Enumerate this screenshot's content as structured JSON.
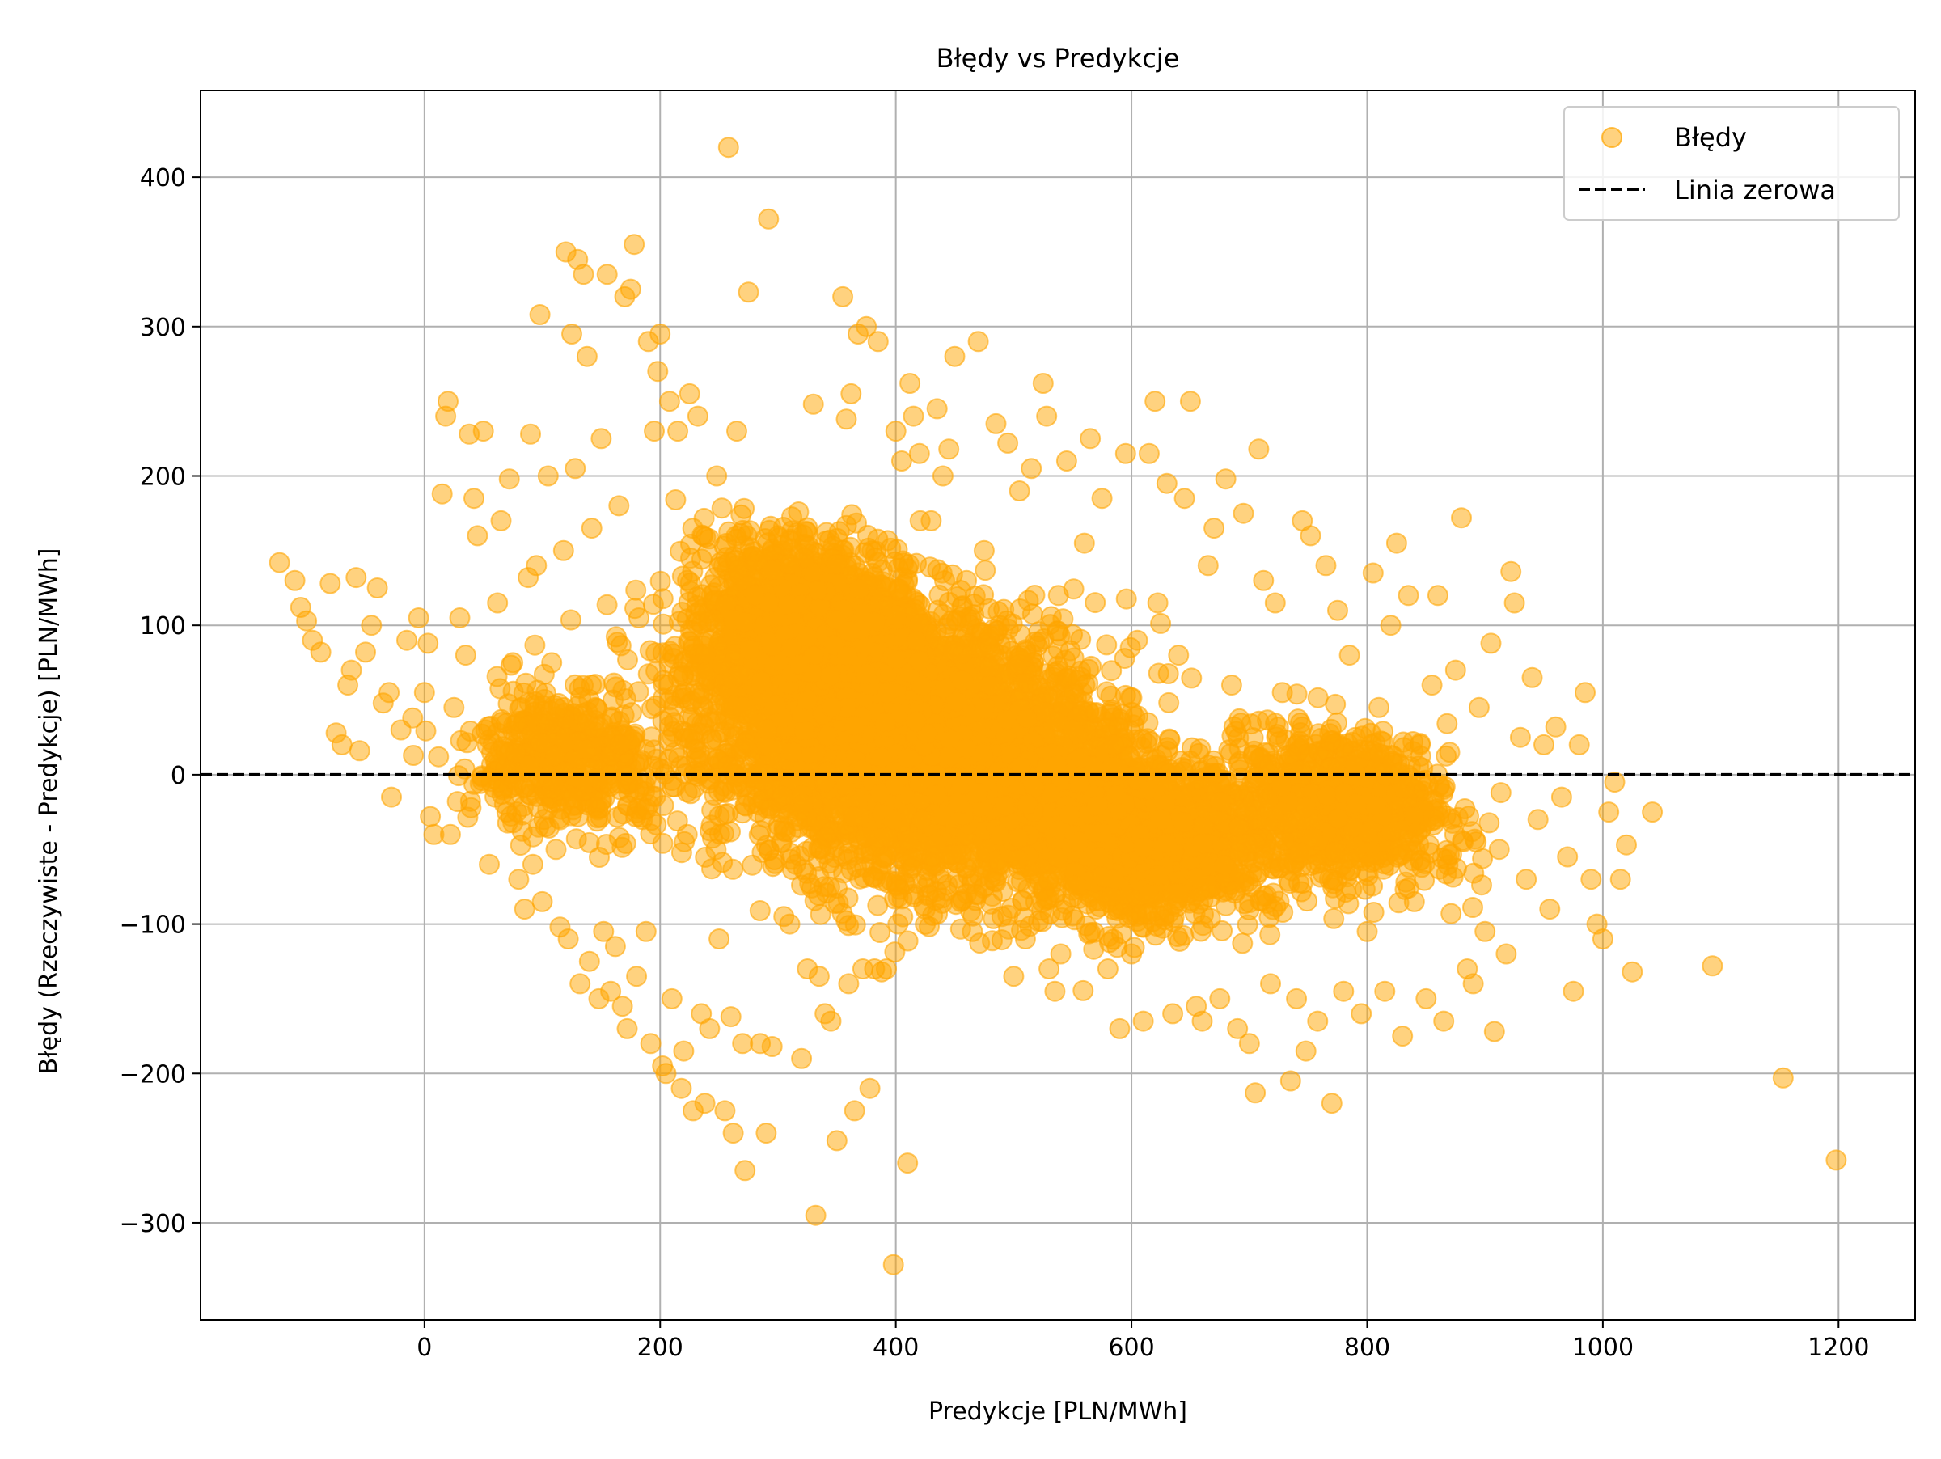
{
  "chart_data": {
    "type": "scatter",
    "title": "Błędy vs Predykcje",
    "xlabel": "Predykcje [PLN/MWh]",
    "ylabel": "Błędy (Rzeczywiste - Predykcje) [PLN/MWh]",
    "xlim": [
      -190,
      1265
    ],
    "ylim": [
      -365,
      458
    ],
    "xticks": [
      0,
      200,
      400,
      600,
      800,
      1000,
      1200
    ],
    "yticks": [
      -300,
      -200,
      -100,
      0,
      100,
      200,
      300,
      400
    ],
    "xtick_labels": [
      "0",
      "200",
      "400",
      "600",
      "800",
      "1000",
      "1200"
    ],
    "ytick_labels": [
      "−300",
      "−200",
      "−100",
      "0",
      "100",
      "200",
      "300",
      "400"
    ],
    "grid": true,
    "legend_position": "top-right",
    "colors": {
      "points": "#ffa500",
      "zero_line": "#000000",
      "grid": "#b0b0b0"
    },
    "series": [
      {
        "name": "Błędy",
        "kind": "points",
        "points": [
          [
            -123,
            142
          ],
          [
            -110,
            130
          ],
          [
            -105,
            112
          ],
          [
            -100,
            103
          ],
          [
            -95,
            90
          ],
          [
            -88,
            82
          ],
          [
            -80,
            128
          ],
          [
            -75,
            28
          ],
          [
            -70,
            20
          ],
          [
            -65,
            60
          ],
          [
            -62,
            70
          ],
          [
            -58,
            132
          ],
          [
            -55,
            16
          ],
          [
            -50,
            82
          ],
          [
            -45,
            100
          ],
          [
            -40,
            125
          ],
          [
            -35,
            48
          ],
          [
            -30,
            55
          ],
          [
            -28,
            -15
          ],
          [
            -20,
            30
          ],
          [
            -15,
            90
          ],
          [
            -10,
            38
          ],
          [
            -5,
            105
          ],
          [
            0,
            55
          ],
          [
            3,
            88
          ],
          [
            5,
            -28
          ],
          [
            8,
            -40
          ],
          [
            12,
            12
          ],
          [
            15,
            188
          ],
          [
            18,
            240
          ],
          [
            20,
            250
          ],
          [
            22,
            -40
          ],
          [
            25,
            45
          ],
          [
            28,
            -18
          ],
          [
            30,
            105
          ],
          [
            35,
            80
          ],
          [
            38,
            228
          ],
          [
            42,
            185
          ],
          [
            45,
            160
          ],
          [
            50,
            230
          ],
          [
            52,
            30
          ],
          [
            55,
            -60
          ],
          [
            60,
            10
          ],
          [
            62,
            115
          ],
          [
            65,
            170
          ],
          [
            70,
            -25
          ],
          [
            72,
            198
          ],
          [
            75,
            75
          ],
          [
            80,
            -70
          ],
          [
            82,
            45
          ],
          [
            85,
            -90
          ],
          [
            88,
            132
          ],
          [
            90,
            228
          ],
          [
            92,
            -60
          ],
          [
            95,
            140
          ],
          [
            98,
            308
          ],
          [
            100,
            -85
          ],
          [
            105,
            200
          ],
          [
            108,
            75
          ],
          [
            110,
            -5
          ],
          [
            115,
            -102
          ],
          [
            118,
            150
          ],
          [
            120,
            350
          ],
          [
            122,
            -110
          ],
          [
            125,
            295
          ],
          [
            128,
            205
          ],
          [
            130,
            345
          ],
          [
            132,
            -140
          ],
          [
            135,
            335
          ],
          [
            138,
            280
          ],
          [
            140,
            -125
          ],
          [
            142,
            165
          ],
          [
            145,
            45
          ],
          [
            148,
            -150
          ],
          [
            150,
            225
          ],
          [
            152,
            -105
          ],
          [
            155,
            335
          ],
          [
            158,
            -145
          ],
          [
            160,
            50
          ],
          [
            162,
            -115
          ],
          [
            165,
            180
          ],
          [
            168,
            -155
          ],
          [
            170,
            320
          ],
          [
            172,
            -170
          ],
          [
            175,
            325
          ],
          [
            178,
            355
          ],
          [
            180,
            -135
          ],
          [
            182,
            105
          ],
          [
            185,
            -30
          ],
          [
            188,
            -105
          ],
          [
            190,
            290
          ],
          [
            192,
            -180
          ],
          [
            195,
            230
          ],
          [
            198,
            270
          ],
          [
            200,
            295
          ],
          [
            202,
            -195
          ],
          [
            205,
            -200
          ],
          [
            208,
            250
          ],
          [
            210,
            -150
          ],
          [
            212,
            35
          ],
          [
            215,
            230
          ],
          [
            218,
            -210
          ],
          [
            220,
            -185
          ],
          [
            225,
            255
          ],
          [
            228,
            -225
          ],
          [
            232,
            240
          ],
          [
            235,
            -160
          ],
          [
            238,
            -220
          ],
          [
            242,
            -170
          ],
          [
            248,
            200
          ],
          [
            250,
            -110
          ],
          [
            255,
            -225
          ],
          [
            258,
            420
          ],
          [
            260,
            -162
          ],
          [
            262,
            -240
          ],
          [
            265,
            230
          ],
          [
            270,
            -180
          ],
          [
            272,
            -265
          ],
          [
            275,
            323
          ],
          [
            280,
            120
          ],
          [
            285,
            -180
          ],
          [
            290,
            -240
          ],
          [
            292,
            372
          ],
          [
            295,
            -182
          ],
          [
            300,
            160
          ],
          [
            305,
            -95
          ],
          [
            310,
            -100
          ],
          [
            315,
            -60
          ],
          [
            320,
            -190
          ],
          [
            325,
            -130
          ],
          [
            330,
            248
          ],
          [
            332,
            -295
          ],
          [
            335,
            -135
          ],
          [
            340,
            -160
          ],
          [
            345,
            -165
          ],
          [
            350,
            -245
          ],
          [
            355,
            320
          ],
          [
            358,
            238
          ],
          [
            360,
            -140
          ],
          [
            362,
            255
          ],
          [
            365,
            -225
          ],
          [
            368,
            295
          ],
          [
            372,
            -130
          ],
          [
            375,
            300
          ],
          [
            378,
            -210
          ],
          [
            382,
            -130
          ],
          [
            385,
            290
          ],
          [
            388,
            -132
          ],
          [
            392,
            -130
          ],
          [
            398,
            -328
          ],
          [
            400,
            230
          ],
          [
            405,
            210
          ],
          [
            410,
            -260
          ],
          [
            412,
            262
          ],
          [
            415,
            240
          ],
          [
            420,
            215
          ],
          [
            425,
            -90
          ],
          [
            430,
            170
          ],
          [
            435,
            245
          ],
          [
            440,
            200
          ],
          [
            445,
            218
          ],
          [
            450,
            280
          ],
          [
            455,
            -85
          ],
          [
            460,
            130
          ],
          [
            465,
            -105
          ],
          [
            470,
            290
          ],
          [
            475,
            150
          ],
          [
            480,
            85
          ],
          [
            485,
            235
          ],
          [
            490,
            -95
          ],
          [
            495,
            222
          ],
          [
            500,
            -135
          ],
          [
            505,
            190
          ],
          [
            510,
            -110
          ],
          [
            515,
            205
          ],
          [
            520,
            60
          ],
          [
            525,
            262
          ],
          [
            528,
            240
          ],
          [
            530,
            -130
          ],
          [
            535,
            -145
          ],
          [
            538,
            120
          ],
          [
            540,
            -120
          ],
          [
            545,
            210
          ],
          [
            550,
            30
          ],
          [
            555,
            -45
          ],
          [
            560,
            155
          ],
          [
            565,
            225
          ],
          [
            570,
            -90
          ],
          [
            575,
            185
          ],
          [
            580,
            -130
          ],
          [
            585,
            20
          ],
          [
            590,
            -170
          ],
          [
            595,
            215
          ],
          [
            600,
            -120
          ],
          [
            605,
            90
          ],
          [
            610,
            -165
          ],
          [
            615,
            215
          ],
          [
            620,
            250
          ],
          [
            625,
            -30
          ],
          [
            630,
            195
          ],
          [
            635,
            -160
          ],
          [
            640,
            80
          ],
          [
            645,
            185
          ],
          [
            650,
            250
          ],
          [
            655,
            -155
          ],
          [
            660,
            -165
          ],
          [
            665,
            140
          ],
          [
            670,
            165
          ],
          [
            675,
            -150
          ],
          [
            680,
            198
          ],
          [
            685,
            60
          ],
          [
            690,
            -170
          ],
          [
            695,
            175
          ],
          [
            700,
            -180
          ],
          [
            705,
            -213
          ],
          [
            708,
            218
          ],
          [
            712,
            130
          ],
          [
            718,
            -140
          ],
          [
            722,
            115
          ],
          [
            728,
            55
          ],
          [
            735,
            -205
          ],
          [
            740,
            -150
          ],
          [
            745,
            170
          ],
          [
            748,
            -185
          ],
          [
            752,
            160
          ],
          [
            758,
            -165
          ],
          [
            765,
            140
          ],
          [
            770,
            -220
          ],
          [
            775,
            110
          ],
          [
            780,
            -145
          ],
          [
            785,
            80
          ],
          [
            790,
            25
          ],
          [
            795,
            -160
          ],
          [
            800,
            -105
          ],
          [
            805,
            135
          ],
          [
            810,
            45
          ],
          [
            815,
            -145
          ],
          [
            820,
            100
          ],
          [
            825,
            155
          ],
          [
            830,
            -175
          ],
          [
            835,
            120
          ],
          [
            840,
            -85
          ],
          [
            845,
            20
          ],
          [
            850,
            -150
          ],
          [
            855,
            60
          ],
          [
            860,
            120
          ],
          [
            865,
            -165
          ],
          [
            870,
            15
          ],
          [
            875,
            70
          ],
          [
            880,
            172
          ],
          [
            885,
            -130
          ],
          [
            890,
            -140
          ],
          [
            895,
            45
          ],
          [
            900,
            -105
          ],
          [
            905,
            88
          ],
          [
            908,
            -172
          ],
          [
            912,
            -50
          ],
          [
            918,
            -120
          ],
          [
            922,
            136
          ],
          [
            925,
            115
          ],
          [
            930,
            25
          ],
          [
            935,
            -70
          ],
          [
            940,
            65
          ],
          [
            945,
            -30
          ],
          [
            950,
            20
          ],
          [
            955,
            -90
          ],
          [
            960,
            32
          ],
          [
            965,
            -15
          ],
          [
            970,
            -55
          ],
          [
            975,
            -145
          ],
          [
            980,
            20
          ],
          [
            985,
            55
          ],
          [
            990,
            -70
          ],
          [
            995,
            -100
          ],
          [
            1000,
            -110
          ],
          [
            1005,
            -25
          ],
          [
            1010,
            -5
          ],
          [
            1015,
            -70
          ],
          [
            1020,
            -47
          ],
          [
            1025,
            -132
          ],
          [
            1042,
            -25
          ],
          [
            1093,
            -128
          ],
          [
            1153,
            -203
          ],
          [
            1198,
            -258
          ]
        ],
        "clouds": [
          {
            "center": [
              420,
              20
            ],
            "spread": [
              240,
              110
            ],
            "count": 4200
          },
          {
            "center": [
              330,
              95
            ],
            "spread": [
              120,
              70
            ],
            "count": 1600
          },
          {
            "center": [
              600,
              -40
            ],
            "spread": [
              140,
              60
            ],
            "count": 1800
          },
          {
            "center": [
              780,
              -20
            ],
            "spread": [
              120,
              60
            ],
            "count": 900
          },
          {
            "center": [
              120,
              10
            ],
            "spread": [
              110,
              55
            ],
            "count": 500
          }
        ]
      },
      {
        "name": "Linia zerowa",
        "kind": "line",
        "y": 0
      }
    ]
  }
}
